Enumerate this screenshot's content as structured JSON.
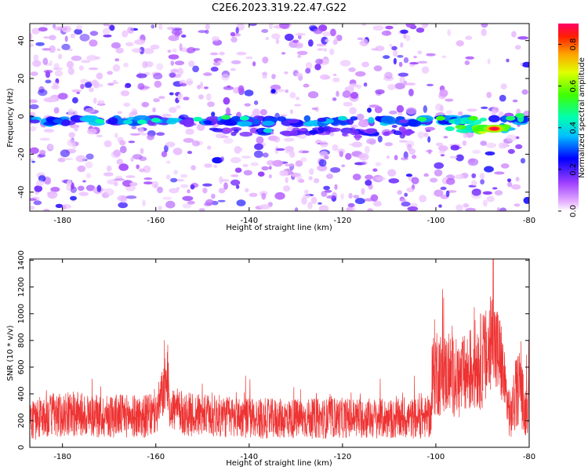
{
  "page_title": "C2E6.2023.319.22.47.G22",
  "chart_data": [
    {
      "type": "heatmap",
      "title": "C2E6.2023.319.22.47.G22",
      "xlabel": "Height of straight line (km)",
      "ylabel": "Frequency (Hz)",
      "xlim": [
        -187,
        -80
      ],
      "ylim": [
        -50,
        49
      ],
      "x_ticks": [
        "-180",
        "-160",
        "-140",
        "-120",
        "-100",
        "-80"
      ],
      "x_tick_values": [
        -180,
        -160,
        -140,
        -120,
        -100,
        -80
      ],
      "y_ticks": [
        "-40",
        "-20",
        "0",
        "20",
        "40"
      ],
      "y_tick_values": [
        -40,
        -20,
        0,
        20,
        40
      ],
      "colorbar": {
        "label": "Normalized spectral amplitude",
        "range": [
          0,
          0.9
        ],
        "ticks": [
          "0.0",
          "0.2",
          "0.4",
          "0.6",
          "0.8"
        ],
        "tick_values": [
          0,
          0.2,
          0.4,
          0.6,
          0.8
        ],
        "colormap": "gist_rainbow_r"
      },
      "ridges": [
        {
          "x_range": [
            -187,
            -101
          ],
          "y": -2.5,
          "intensity": 0.35
        },
        {
          "x_range": [
            -99,
            -81
          ],
          "y": -2.0,
          "intensity": 0.45
        },
        {
          "x_range": [
            -95,
            -84
          ],
          "y": -6.5,
          "intensity": 0.6
        }
      ],
      "peak": {
        "x": -87.5,
        "y": -6.5,
        "value": 0.9
      }
    },
    {
      "type": "line",
      "xlabel": "Height of straight line (km)",
      "ylabel": "SNR (10 * v/v)",
      "xlim": [
        -187,
        -80
      ],
      "ylim": [
        0,
        1410
      ],
      "x_ticks": [
        "-180",
        "-160",
        "-140",
        "-120",
        "-100",
        "-80"
      ],
      "x_tick_values": [
        -180,
        -160,
        -140,
        -120,
        -100,
        -80
      ],
      "y_ticks": [
        "0",
        "200",
        "400",
        "600",
        "800",
        "1000",
        "1200",
        "1400"
      ],
      "y_tick_values": [
        0,
        200,
        400,
        600,
        800,
        1000,
        1200,
        1400
      ],
      "line_color": "#ee3333",
      "x": [
        -187,
        -184,
        -181,
        -178,
        -175,
        -172,
        -169,
        -166,
        -163,
        -160,
        -157.5,
        -157,
        -154,
        -151,
        -148,
        -145,
        -142,
        -139,
        -136,
        -133,
        -130,
        -127,
        -124,
        -121,
        -118,
        -115,
        -112,
        -109,
        -106,
        -103,
        -101,
        -100.5,
        -99,
        -97,
        -95,
        -93,
        -91,
        -89,
        -88,
        -87,
        -86,
        -85,
        -84,
        -83,
        -82,
        -81,
        -80
      ],
      "values": [
        200,
        230,
        240,
        250,
        245,
        230,
        240,
        235,
        230,
        240,
        520,
        300,
        250,
        240,
        235,
        230,
        225,
        220,
        215,
        215,
        215,
        215,
        215,
        220,
        220,
        220,
        215,
        210,
        215,
        220,
        230,
        600,
        550,
        550,
        500,
        560,
        640,
        660,
        800,
        720,
        640,
        400,
        220,
        360,
        500,
        260,
        350
      ],
      "spread": [
        150,
        160,
        165,
        170,
        165,
        160,
        165,
        160,
        160,
        165,
        220,
        170,
        165,
        160,
        160,
        160,
        155,
        155,
        150,
        150,
        150,
        150,
        150,
        150,
        150,
        155,
        150,
        150,
        150,
        155,
        160,
        380,
        320,
        300,
        300,
        320,
        360,
        380,
        420,
        380,
        320,
        220,
        180,
        260,
        300,
        200,
        220
      ],
      "peak": {
        "x": -87.7,
        "y": 1410
      }
    }
  ]
}
